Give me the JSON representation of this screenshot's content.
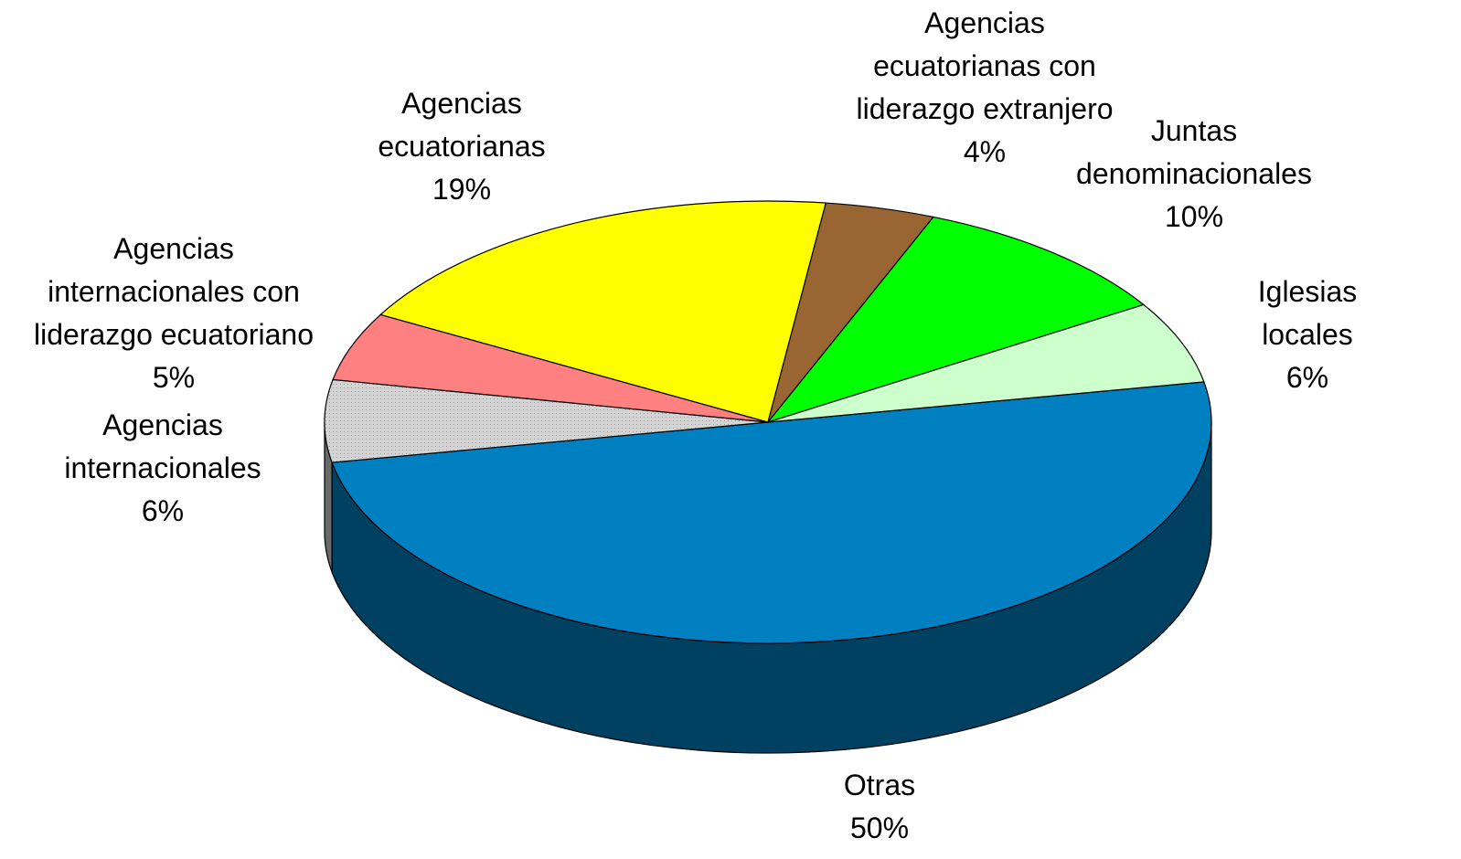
{
  "chart_data": {
    "type": "pie",
    "categories": [
      "Otras",
      "Agencias\ninternacionales",
      "Agencias\ninternacionales con\nliderazgo ecuatoriano",
      "Agencias\necuatorianas",
      "Agencias\necuatorianas con\nliderazgo extranjero",
      "Juntas\ndenominacionales",
      "Iglesias locales"
    ],
    "values": [
      50,
      6,
      5,
      19,
      4,
      10,
      6
    ],
    "value_labels": [
      "50%",
      "6%",
      "5%",
      "19%",
      "4%",
      "10%",
      "6%"
    ],
    "colors": [
      "#0080c0",
      "#d4d4d4",
      "#ff8080",
      "#ffff00",
      "#996633",
      "#00ff00",
      "#ccffcc"
    ]
  }
}
